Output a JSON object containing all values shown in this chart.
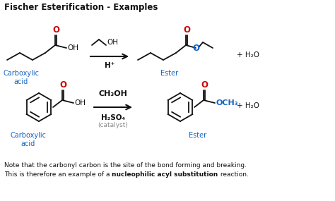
{
  "title": "Fischer Esterification - Examples",
  "title_fontsize": 8.5,
  "bg_color": "#ffffff",
  "note_line1": "Note that the carbonyl carbon is the site of the bond forming and breaking.",
  "note_line2_normal": "This is therefore an example of a ",
  "note_line2_bold": "nucleophilic acyl substitution",
  "note_line2_end": " reaction.",
  "blue_color": "#1565C0",
  "red_color": "#cc0000",
  "black_color": "#111111",
  "gray_color": "#888888",
  "label_carboxylic": "Carboxylic\nacid",
  "label_ester": "Ester",
  "r1_reagent_top": "OH",
  "r1_reagent_bot": "H⁺",
  "r2_reagent_top": "CH₃OH",
  "r2_reagent_bot1": "H₂SO₄",
  "r2_reagent_bot2": "(catalyst)",
  "water": "+ H₂O"
}
